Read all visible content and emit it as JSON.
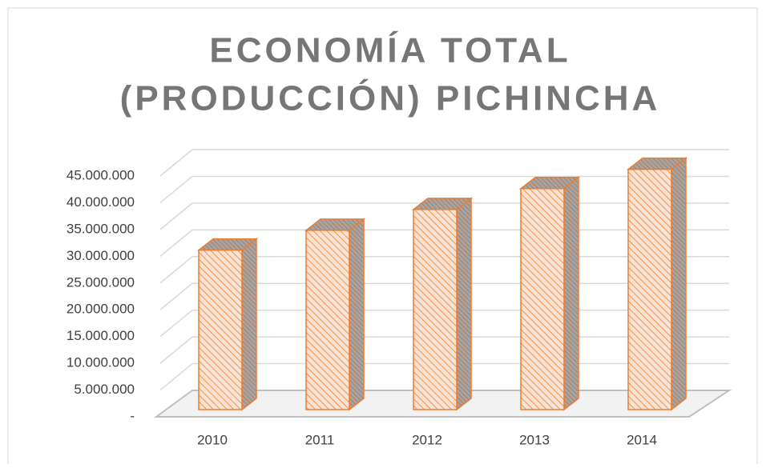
{
  "chart_data": {
    "type": "bar3d",
    "title": [
      "ECONOMÍA TOTAL",
      "(PRODUCCIÓN) PICHINCHA"
    ],
    "categories": [
      "2010",
      "2011",
      "2012",
      "2013",
      "2014"
    ],
    "values": [
      29800000,
      33500000,
      37400000,
      41300000,
      44900000
    ],
    "color": "#ed7d31",
    "ylim": [
      0,
      45000000
    ],
    "yticks": [
      {
        "value": 0,
        "label": "-"
      },
      {
        "value": 5000000,
        "label": "5.000.000"
      },
      {
        "value": 10000000,
        "label": "10.000.000"
      },
      {
        "value": 15000000,
        "label": "15.000.000"
      },
      {
        "value": 20000000,
        "label": "20.000.000"
      },
      {
        "value": 25000000,
        "label": "25.000.000"
      },
      {
        "value": 30000000,
        "label": "30.000.000"
      },
      {
        "value": 35000000,
        "label": "35.000.000"
      },
      {
        "value": 40000000,
        "label": "40.000.000"
      },
      {
        "value": 45000000,
        "label": "45.000.000"
      }
    ],
    "grid": true
  }
}
